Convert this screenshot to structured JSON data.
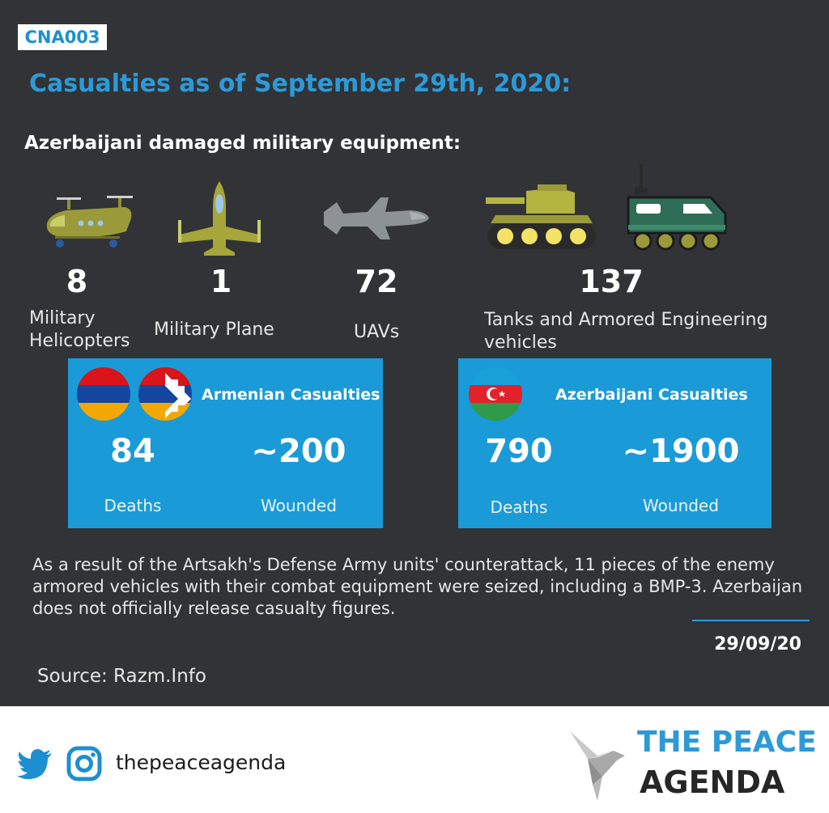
{
  "code": "CNA003",
  "title": "Casualties as of September 29th, 2020:",
  "subtitle": "Azerbaijani damaged military equipment:",
  "equipment": [
    {
      "icon": "helicopter-icon",
      "count": "8",
      "label": "Military Helicopters"
    },
    {
      "icon": "military-plane-icon",
      "count": "1",
      "label": "Military Plane"
    },
    {
      "icon": "uav-icon",
      "count": "72",
      "label": "UAVs"
    },
    {
      "icon": "tank-icon",
      "count": "137",
      "label": "Tanks and Armored Engineering vehicles"
    }
  ],
  "armenian": {
    "title": "Armenian Casualties",
    "deaths": "84",
    "deaths_label": "Deaths",
    "wounded": "~200",
    "wounded_label": "Wounded"
  },
  "azerbaijani": {
    "title": "Azerbaijani Casualties",
    "deaths": "790",
    "deaths_label": "Deaths",
    "wounded": "~1900",
    "wounded_label": "Wounded"
  },
  "note": "As a result of the Artsakh's Defense Army units' counterattack, 11 pieces of the enemy armored vehicles with their combat equipment were seized, including a BMP-3. Azerbaijan does not officially release casualty figures.",
  "date": "29/09/20",
  "source": "Source: Razm.Info",
  "footer": {
    "handle": "thepeaceagenda",
    "brand_line1": "THE PEACE",
    "brand_line2": "AGENDA"
  },
  "colors": {
    "background": "#323336",
    "accent": "#2d9ad8",
    "box": "#1b9ad8",
    "olive": "#9a9a3a",
    "green_vehicle": "#2f6e56"
  }
}
